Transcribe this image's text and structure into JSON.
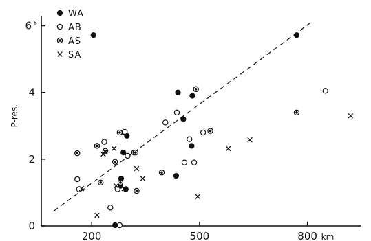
{
  "chart_data": {
    "type": "scatter",
    "title": "",
    "xlabel": "km",
    "ylabel": "P-res.",
    "y_unit": "s",
    "xlim": [
      60,
      950
    ],
    "ylim": [
      0,
      6.3
    ],
    "xticks": [
      200,
      500,
      800
    ],
    "yticks": [
      0,
      2,
      4,
      6
    ],
    "ytick_labels": [
      "0",
      "2",
      "4",
      "6"
    ],
    "grid": false,
    "legend": "top-left",
    "colors": {
      "ink": "#111111",
      "background": "#ffffff"
    },
    "series": [
      {
        "name": "WA",
        "marker": "filled-circle",
        "points": [
          [
            205,
            5.72
          ],
          [
            290,
            2.8
          ],
          [
            298,
            2.7
          ],
          [
            288,
            2.2
          ],
          [
            282,
            1.42
          ],
          [
            280,
            1.2
          ],
          [
            295,
            1.1
          ],
          [
            265,
            0.02
          ],
          [
            440,
            4.0
          ],
          [
            455,
            3.2
          ],
          [
            480,
            3.9
          ],
          [
            490,
            4.1
          ],
          [
            478,
            2.4
          ],
          [
            435,
            1.5
          ],
          [
            770,
            5.72
          ]
        ]
      },
      {
        "name": "AB",
        "marker": "open-circle",
        "points": [
          [
            160,
            1.4
          ],
          [
            165,
            1.1
          ],
          [
            235,
            2.52
          ],
          [
            292,
            2.82
          ],
          [
            300,
            2.1
          ],
          [
            272,
            1.1
          ],
          [
            252,
            0.55
          ],
          [
            278,
            0.02
          ],
          [
            405,
            3.1
          ],
          [
            437,
            3.4
          ],
          [
            472,
            2.6
          ],
          [
            458,
            1.9
          ],
          [
            485,
            1.9
          ],
          [
            510,
            2.8
          ],
          [
            850,
            4.05
          ]
        ]
      },
      {
        "name": "AS",
        "marker": "dotted-circle",
        "points": [
          [
            160,
            2.18
          ],
          [
            215,
            2.4
          ],
          [
            238,
            2.25
          ],
          [
            225,
            1.3
          ],
          [
            265,
            1.92
          ],
          [
            280,
            1.3
          ],
          [
            278,
            2.8
          ],
          [
            318,
            2.2
          ],
          [
            322,
            2.2
          ],
          [
            325,
            1.05
          ],
          [
            395,
            1.6
          ],
          [
            530,
            2.85
          ],
          [
            490,
            4.1
          ],
          [
            770,
            3.4
          ]
        ]
      },
      {
        "name": "SA",
        "marker": "cross",
        "points": [
          [
            172,
            1.12
          ],
          [
            215,
            0.32
          ],
          [
            232,
            2.15
          ],
          [
            238,
            2.22
          ],
          [
            262,
            2.32
          ],
          [
            268,
            1.2
          ],
          [
            290,
            1.12
          ],
          [
            325,
            1.72
          ],
          [
            342,
            1.42
          ],
          [
            495,
            0.88
          ],
          [
            580,
            2.32
          ],
          [
            640,
            2.58
          ],
          [
            920,
            3.3
          ]
        ]
      }
    ],
    "trend_line": {
      "style": "dashed",
      "from": [
        95,
        0.45
      ],
      "to": [
        810,
        6.1
      ]
    }
  }
}
